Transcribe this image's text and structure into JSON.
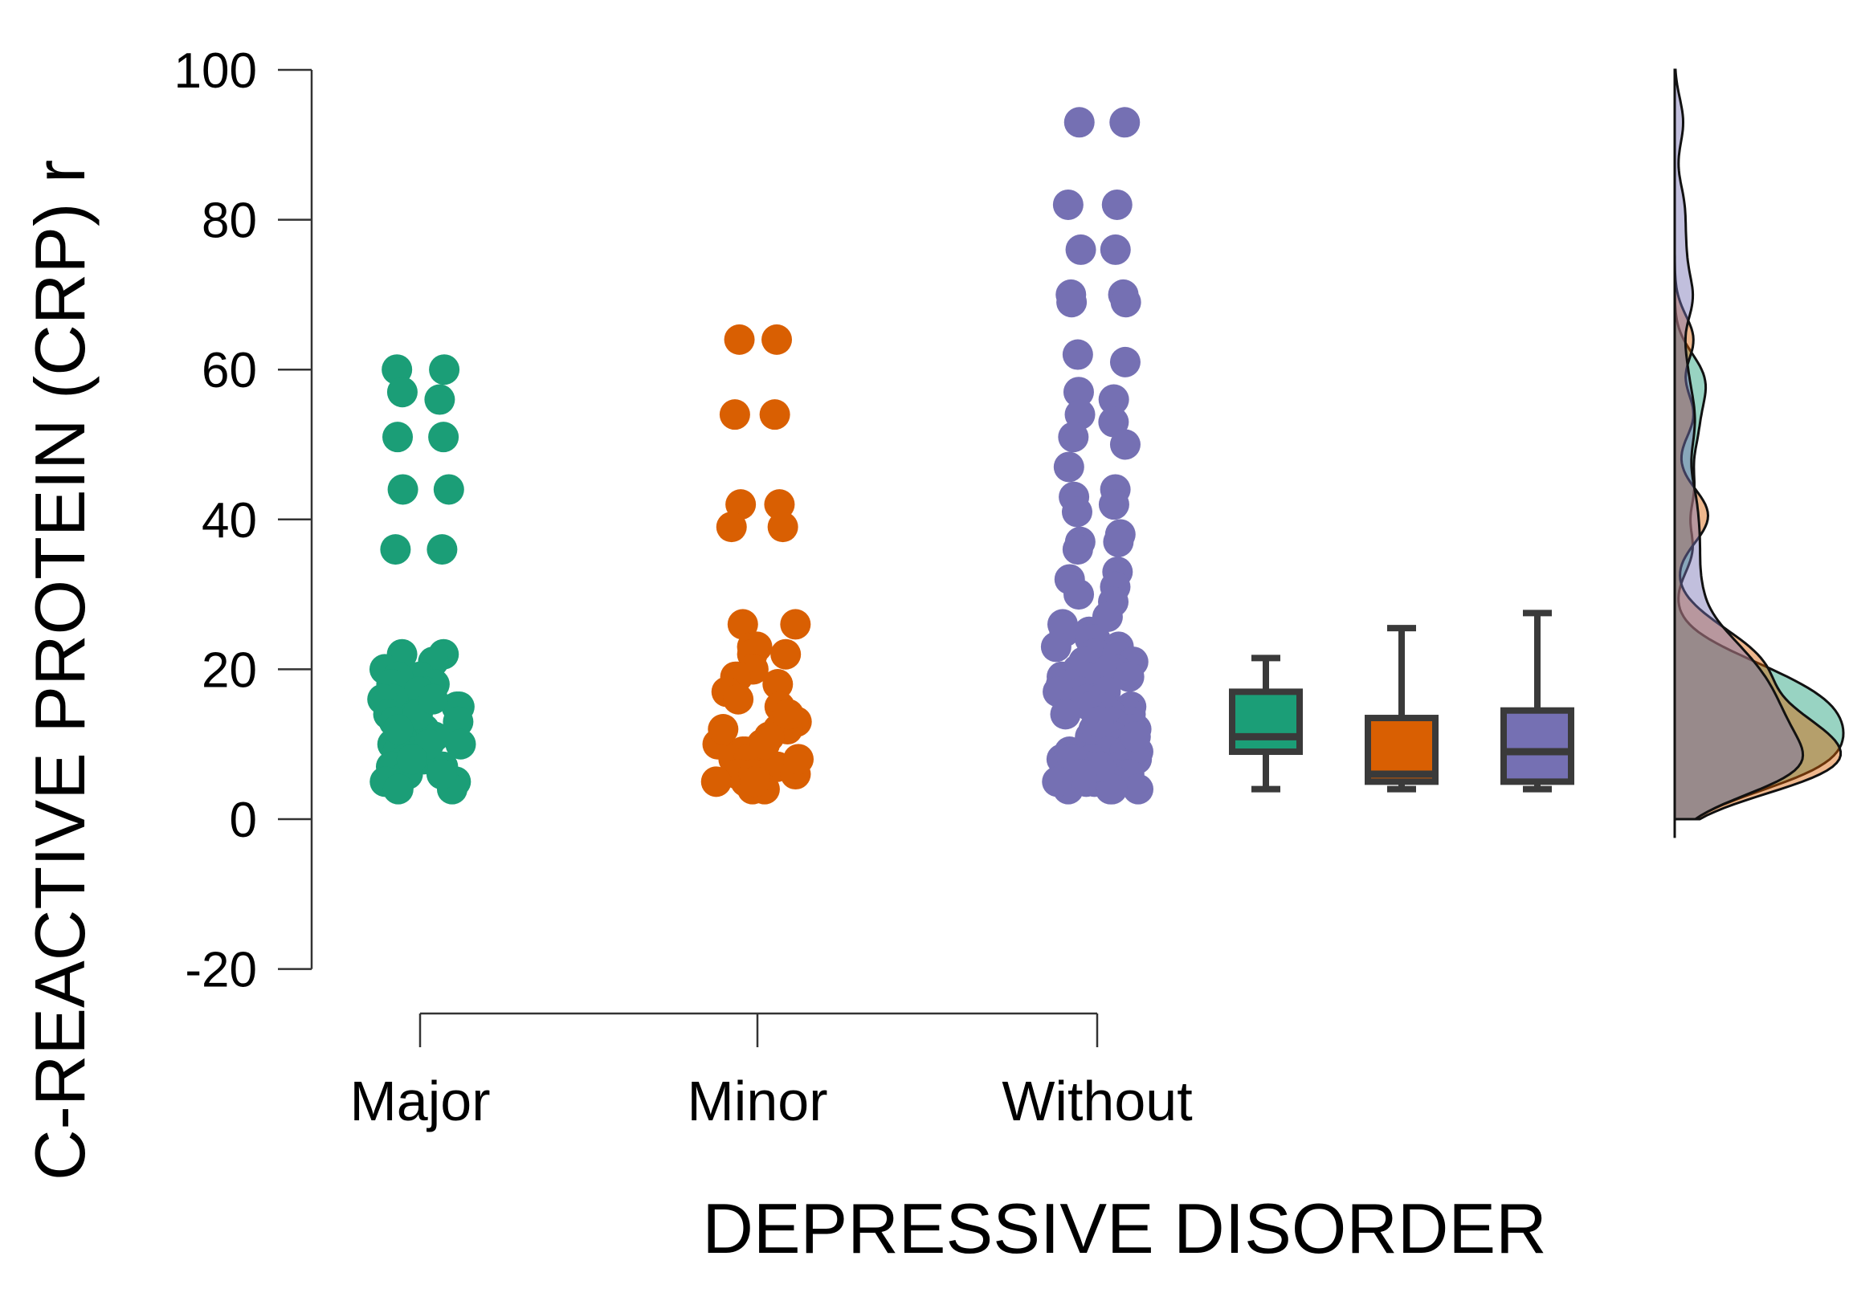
{
  "chart_data": {
    "type": "scatter",
    "subtype": "raincloud",
    "title": "",
    "xlabel": "DEPRESSIVE DISORDER",
    "ylabel": "C-REACTIVE PROTEIN (CRP) r",
    "ylim": [
      -20,
      100
    ],
    "yticks": [
      -20,
      0,
      20,
      40,
      60,
      80,
      100
    ],
    "categories": [
      "Major",
      "Minor",
      "Without"
    ],
    "grid": false,
    "series": [
      {
        "name": "Major",
        "color": "#1b9e77",
        "values": [
          60,
          60,
          57,
          56,
          51,
          51,
          44,
          44,
          36,
          36,
          22,
          22,
          21,
          20,
          19,
          19,
          18,
          18,
          17,
          17,
          16,
          16,
          15,
          15,
          14,
          14,
          13,
          13,
          12,
          12,
          11,
          11,
          10,
          10,
          9,
          9,
          8,
          8,
          7,
          7,
          6,
          6,
          5,
          5,
          4,
          4,
          14,
          12,
          10,
          8,
          6,
          16
        ],
        "box": {
          "min": 4,
          "q1": 9,
          "median": 11,
          "q3": 17,
          "max": 21.5
        }
      },
      {
        "name": "Minor",
        "color": "#d95f02",
        "values": [
          64,
          64,
          54,
          54,
          42,
          42,
          39,
          39,
          26,
          26,
          23,
          23,
          22,
          22,
          20,
          20,
          19,
          19,
          18,
          17,
          16,
          15,
          14,
          13,
          13,
          12,
          12,
          11,
          10,
          10,
          9,
          9,
          8,
          8,
          7,
          7,
          6,
          6,
          5,
          5,
          4,
          4,
          12,
          8,
          6,
          14,
          10,
          5
        ],
        "box": {
          "min": 4,
          "q1": 5,
          "median": 6,
          "q3": 13.5,
          "max": 25.5
        }
      },
      {
        "name": "Without",
        "color": "#7570b3",
        "values": [
          93,
          93,
          82,
          82,
          76,
          76,
          70,
          70,
          69,
          69,
          62,
          61,
          57,
          56,
          54,
          53,
          51,
          50,
          47,
          44,
          43,
          42,
          41,
          38,
          37,
          37,
          36,
          33,
          32,
          31,
          30,
          29,
          27,
          26,
          25,
          25,
          24,
          24,
          23,
          23,
          22,
          22,
          21,
          21,
          20,
          20,
          20,
          19,
          19,
          19,
          18,
          18,
          18,
          17,
          17,
          17,
          16,
          16,
          16,
          15,
          15,
          15,
          14,
          14,
          14,
          13,
          13,
          13,
          12,
          12,
          12,
          11,
          11,
          11,
          10,
          10,
          10,
          9,
          9,
          9,
          8,
          8,
          8,
          7,
          7,
          7,
          7,
          6,
          6,
          6,
          6,
          5,
          5,
          5,
          5,
          4,
          4,
          4,
          4,
          9,
          8,
          7,
          6,
          5,
          11,
          13
        ],
        "box": {
          "min": 4,
          "q1": 5,
          "median": 9,
          "q3": 14.5,
          "max": 27.5
        }
      }
    ]
  }
}
